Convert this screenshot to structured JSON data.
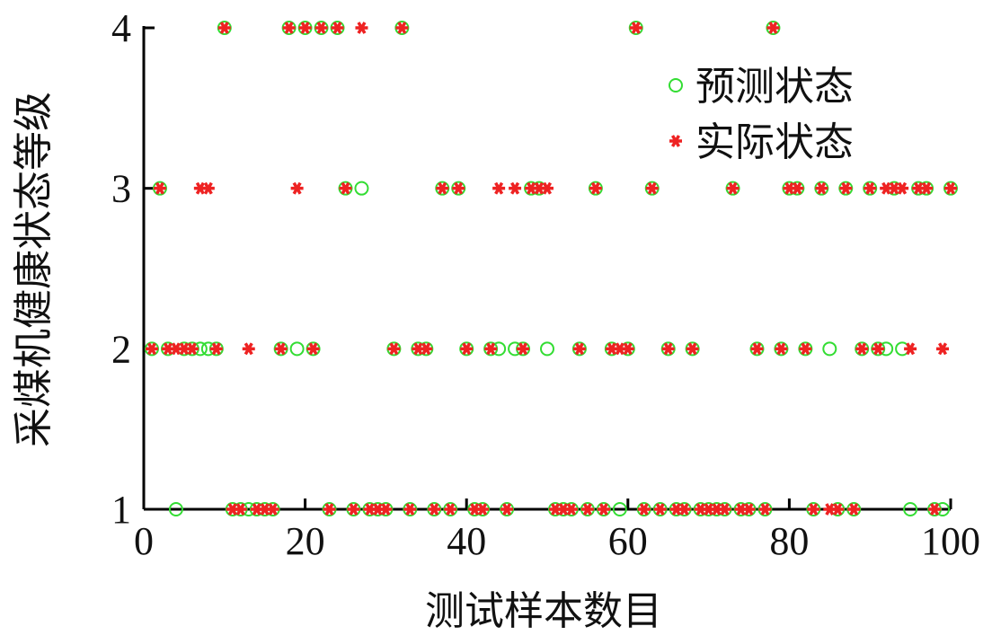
{
  "chart_data": {
    "type": "scatter",
    "x_label": "测试样本数目",
    "y_label": "采煤机健康状态等级",
    "x": [
      1,
      2,
      3,
      4,
      5,
      6,
      7,
      8,
      9,
      10,
      11,
      12,
      13,
      14,
      15,
      16,
      17,
      18,
      19,
      20,
      21,
      22,
      23,
      24,
      25,
      26,
      27,
      28,
      29,
      30,
      31,
      32,
      33,
      34,
      35,
      36,
      37,
      38,
      39,
      40,
      41,
      42,
      43,
      44,
      45,
      46,
      47,
      48,
      49,
      50,
      51,
      52,
      53,
      54,
      55,
      56,
      57,
      58,
      59,
      60,
      61,
      62,
      63,
      64,
      65,
      66,
      67,
      68,
      69,
      70,
      71,
      72,
      73,
      74,
      75,
      76,
      77,
      78,
      79,
      80,
      81,
      82,
      83,
      84,
      85,
      86,
      87,
      88,
      89,
      90,
      91,
      92,
      93,
      94,
      95,
      96,
      97,
      98,
      99,
      100
    ],
    "series": [
      {
        "name": "预测状态",
        "color": "#33dd33",
        "marker": "open-circle",
        "values": [
          2,
          3,
          2,
          1,
          2,
          2,
          2,
          2,
          2,
          4,
          1,
          1,
          1,
          1,
          1,
          1,
          2,
          4,
          2,
          4,
          2,
          4,
          1,
          4,
          3,
          1,
          3,
          1,
          1,
          1,
          2,
          4,
          1,
          2,
          2,
          1,
          3,
          1,
          3,
          2,
          1,
          1,
          2,
          2,
          1,
          2,
          2,
          3,
          3,
          2,
          1,
          1,
          1,
          2,
          1,
          3,
          1,
          2,
          1,
          2,
          4,
          1,
          3,
          1,
          2,
          1,
          1,
          2,
          1,
          1,
          1,
          1,
          3,
          1,
          1,
          2,
          1,
          4,
          2,
          3,
          3,
          2,
          1,
          3,
          2,
          1,
          3,
          1,
          2,
          3,
          2,
          2,
          3,
          2,
          1,
          3,
          3,
          1,
          1,
          3
        ]
      },
      {
        "name": "实际状态",
        "color": "#ee2222",
        "marker": "star",
        "values": [
          2,
          3,
          2,
          2,
          2,
          2,
          3,
          3,
          2,
          4,
          1,
          1,
          2,
          1,
          1,
          1,
          2,
          4,
          3,
          4,
          2,
          4,
          1,
          4,
          3,
          1,
          4,
          1,
          1,
          1,
          2,
          4,
          1,
          2,
          2,
          1,
          3,
          1,
          3,
          2,
          1,
          1,
          2,
          3,
          1,
          3,
          2,
          3,
          3,
          3,
          1,
          1,
          1,
          2,
          1,
          3,
          1,
          2,
          2,
          2,
          4,
          1,
          3,
          1,
          2,
          1,
          1,
          2,
          1,
          1,
          1,
          1,
          3,
          1,
          1,
          2,
          1,
          4,
          2,
          3,
          3,
          2,
          1,
          3,
          1,
          1,
          3,
          1,
          2,
          3,
          2,
          3,
          3,
          3,
          2,
          3,
          3,
          1,
          2,
          3
        ]
      }
    ],
    "xlim": [
      0,
      100
    ],
    "xticks": [
      0,
      20,
      40,
      60,
      80,
      100
    ],
    "ylim": [
      1,
      4
    ],
    "yticks": [
      1,
      2,
      3,
      4
    ],
    "legend": "upper right"
  }
}
